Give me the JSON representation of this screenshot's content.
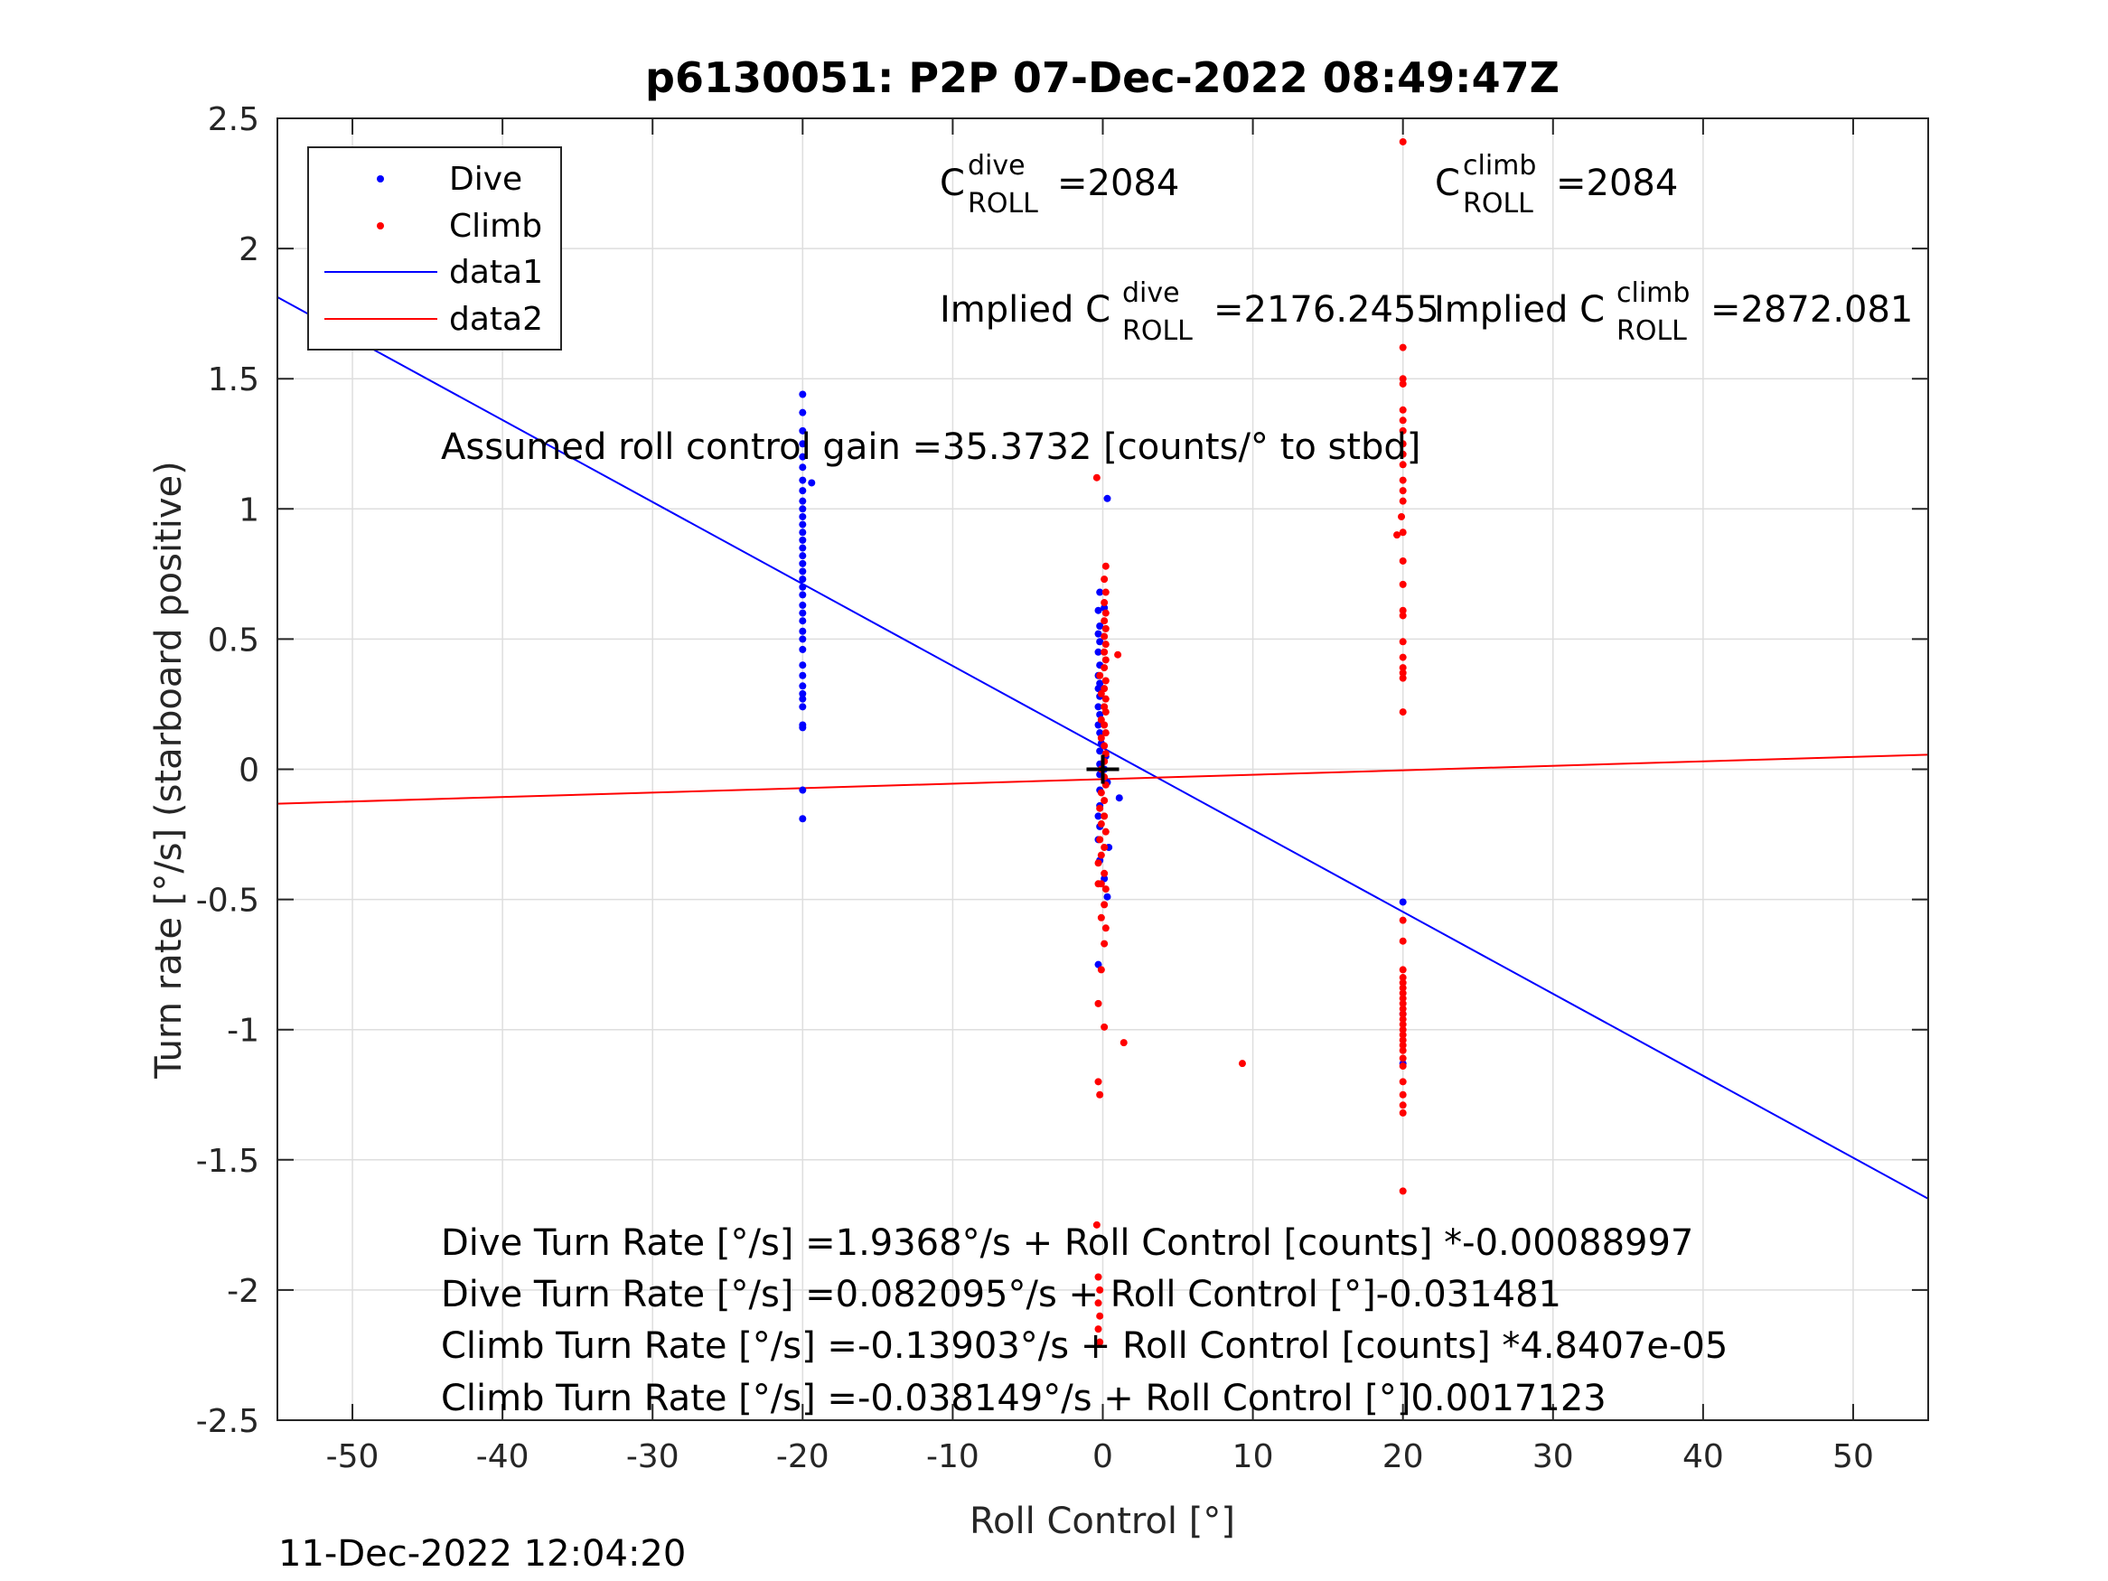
{
  "chart_data": {
    "type": "scatter",
    "title": "p6130051: P2P 07-Dec-2022 08:49:47Z",
    "xlabel": "Roll Control [°]",
    "ylabel": "Turn rate [°/s] (starboard positive)",
    "xlim": [
      -55,
      55
    ],
    "ylim": [
      -2.5,
      2.5
    ],
    "xticks": [
      "-50",
      "-40",
      "-30",
      "-20",
      "-10",
      "0",
      "10",
      "20",
      "30",
      "40",
      "50"
    ],
    "yticks": [
      "2.5",
      "2",
      "1.5",
      "1",
      "0.5",
      "0",
      "-0.5",
      "-1",
      "-1.5",
      "-2",
      "-2.5"
    ],
    "grid": true,
    "legend_position": "top-left",
    "colors": {
      "dive": "#0000ff",
      "climb": "#ff0000",
      "origin": "#000000"
    },
    "series": [
      {
        "name": "Dive",
        "kind": "scatter",
        "color": "#0000ff",
        "points": [
          [
            -20,
            1.44
          ],
          [
            -20,
            1.37
          ],
          [
            -20,
            1.3
          ],
          [
            -20,
            1.25
          ],
          [
            -20,
            1.2
          ],
          [
            -20,
            1.16
          ],
          [
            -20,
            1.11
          ],
          [
            -19.4,
            1.1
          ],
          [
            -20,
            1.07
          ],
          [
            -20,
            1.03
          ],
          [
            -20,
            1.0
          ],
          [
            -20,
            0.97
          ],
          [
            -20,
            0.94
          ],
          [
            -20,
            0.91
          ],
          [
            -20,
            0.88
          ],
          [
            -20,
            0.85
          ],
          [
            -20,
            0.82
          ],
          [
            -20,
            0.79
          ],
          [
            -20,
            0.76
          ],
          [
            -20,
            0.73
          ],
          [
            -20,
            0.7
          ],
          [
            -20,
            0.67
          ],
          [
            -20,
            0.63
          ],
          [
            -20,
            0.6
          ],
          [
            -20,
            0.57
          ],
          [
            -20,
            0.53
          ],
          [
            -20,
            0.5
          ],
          [
            -20,
            0.46
          ],
          [
            -20,
            0.4
          ],
          [
            -20,
            0.36
          ],
          [
            -20,
            0.32
          ],
          [
            -20,
            0.29
          ],
          [
            -20,
            0.27
          ],
          [
            -20,
            0.24
          ],
          [
            -20,
            0.17
          ],
          [
            -20,
            0.16
          ],
          [
            -20,
            -0.08
          ],
          [
            -20,
            -0.19
          ],
          [
            0.3,
            1.04
          ],
          [
            -0.2,
            0.68
          ],
          [
            -0.3,
            0.61
          ],
          [
            0.1,
            0.62
          ],
          [
            -0.2,
            0.55
          ],
          [
            -0.3,
            0.52
          ],
          [
            -0.2,
            0.49
          ],
          [
            -0.3,
            0.45
          ],
          [
            -0.2,
            0.4
          ],
          [
            -0.3,
            0.36
          ],
          [
            -0.2,
            0.33
          ],
          [
            -0.3,
            0.31
          ],
          [
            -0.2,
            0.28
          ],
          [
            -0.3,
            0.24
          ],
          [
            -0.2,
            0.21
          ],
          [
            -0.3,
            0.17
          ],
          [
            -0.2,
            0.14
          ],
          [
            -0.1,
            0.1
          ],
          [
            -0.2,
            0.07
          ],
          [
            0.2,
            0.05
          ],
          [
            -0.2,
            0.02
          ],
          [
            0.1,
            0.0
          ],
          [
            -0.2,
            -0.02
          ],
          [
            0.3,
            -0.05
          ],
          [
            -0.2,
            -0.08
          ],
          [
            1.1,
            -0.11
          ],
          [
            -0.2,
            -0.14
          ],
          [
            -0.3,
            -0.18
          ],
          [
            -0.2,
            -0.22
          ],
          [
            -0.3,
            -0.27
          ],
          [
            0.4,
            -0.3
          ],
          [
            -0.2,
            -0.35
          ],
          [
            0.1,
            -0.42
          ],
          [
            0.3,
            -0.49
          ],
          [
            -0.3,
            -0.75
          ],
          [
            20,
            -0.51
          ],
          [
            20,
            -0.94
          ],
          [
            20,
            -1.13
          ]
        ]
      },
      {
        "name": "Climb",
        "kind": "scatter",
        "color": "#ff0000",
        "points": [
          [
            -0.4,
            1.12
          ],
          [
            0.2,
            0.78
          ],
          [
            0.1,
            0.73
          ],
          [
            0.2,
            0.68
          ],
          [
            0.1,
            0.64
          ],
          [
            0.2,
            0.6
          ],
          [
            0.1,
            0.57
          ],
          [
            0.2,
            0.54
          ],
          [
            0.1,
            0.51
          ],
          [
            0.2,
            0.48
          ],
          [
            0.1,
            0.45
          ],
          [
            1.0,
            0.44
          ],
          [
            0.2,
            0.42
          ],
          [
            0.1,
            0.39
          ],
          [
            -0.2,
            0.36
          ],
          [
            0.2,
            0.34
          ],
          [
            0.1,
            0.31
          ],
          [
            -0.1,
            0.29
          ],
          [
            0.2,
            0.27
          ],
          [
            0.1,
            0.24
          ],
          [
            0.2,
            0.22
          ],
          [
            -0.1,
            0.19
          ],
          [
            0.1,
            0.17
          ],
          [
            0.2,
            0.14
          ],
          [
            -0.1,
            0.12
          ],
          [
            0.1,
            0.09
          ],
          [
            0.2,
            0.06
          ],
          [
            0.1,
            0.03
          ],
          [
            -0.1,
            0.0
          ],
          [
            0.1,
            -0.03
          ],
          [
            0.2,
            -0.06
          ],
          [
            -0.1,
            -0.09
          ],
          [
            0.1,
            -0.12
          ],
          [
            -0.2,
            -0.15
          ],
          [
            0.1,
            -0.18
          ],
          [
            -0.1,
            -0.21
          ],
          [
            0.2,
            -0.24
          ],
          [
            -0.2,
            -0.27
          ],
          [
            0.1,
            -0.3
          ],
          [
            -0.1,
            -0.33
          ],
          [
            -0.3,
            -0.36
          ],
          [
            0.1,
            -0.4
          ],
          [
            -0.1,
            -0.44
          ],
          [
            -0.3,
            -0.44
          ],
          [
            0.2,
            -0.46
          ],
          [
            0.1,
            -0.52
          ],
          [
            -0.1,
            -0.57
          ],
          [
            0.2,
            -0.61
          ],
          [
            0.1,
            -0.67
          ],
          [
            -0.1,
            -0.77
          ],
          [
            -0.3,
            -0.9
          ],
          [
            0.1,
            -0.99
          ],
          [
            1.4,
            -1.05
          ],
          [
            -0.3,
            -1.2
          ],
          [
            -0.2,
            -1.25
          ],
          [
            -0.4,
            -1.75
          ],
          [
            -0.3,
            -1.95
          ],
          [
            -0.2,
            -2.0
          ],
          [
            -0.3,
            -2.05
          ],
          [
            -0.2,
            -2.1
          ],
          [
            -0.3,
            -2.15
          ],
          [
            -0.2,
            -2.2
          ],
          [
            9.3,
            -1.13
          ],
          [
            20,
            2.41
          ],
          [
            20,
            1.62
          ],
          [
            20,
            1.5
          ],
          [
            20,
            1.48
          ],
          [
            20,
            1.38
          ],
          [
            20,
            1.34
          ],
          [
            20,
            1.3
          ],
          [
            20,
            1.25
          ],
          [
            20,
            1.21
          ],
          [
            20,
            1.17
          ],
          [
            20,
            1.11
          ],
          [
            20,
            1.07
          ],
          [
            20,
            1.03
          ],
          [
            19.9,
            0.97
          ],
          [
            19.6,
            0.9
          ],
          [
            20,
            0.91
          ],
          [
            20,
            0.8
          ],
          [
            20,
            0.71
          ],
          [
            20,
            0.61
          ],
          [
            20,
            0.59
          ],
          [
            20,
            0.49
          ],
          [
            20,
            0.43
          ],
          [
            20,
            0.39
          ],
          [
            20,
            0.37
          ],
          [
            20,
            0.35
          ],
          [
            20,
            0.22
          ],
          [
            20,
            -0.58
          ],
          [
            20,
            -0.66
          ],
          [
            20,
            -0.77
          ],
          [
            20,
            -0.8
          ],
          [
            20,
            -0.82
          ],
          [
            20,
            -0.84
          ],
          [
            20,
            -0.86
          ],
          [
            20,
            -0.88
          ],
          [
            20,
            -0.9
          ],
          [
            20,
            -0.92
          ],
          [
            20,
            -0.94
          ],
          [
            20,
            -0.96
          ],
          [
            20,
            -0.98
          ],
          [
            20,
            -1.0
          ],
          [
            20,
            -1.02
          ],
          [
            20,
            -1.04
          ],
          [
            20,
            -1.06
          ],
          [
            20,
            -1.08
          ],
          [
            20,
            -1.11
          ],
          [
            20,
            -1.14
          ],
          [
            20,
            -1.2
          ],
          [
            20,
            -1.25
          ],
          [
            20,
            -1.29
          ],
          [
            20,
            -1.32
          ],
          [
            20,
            -1.62
          ]
        ]
      },
      {
        "name": "data1",
        "kind": "line",
        "color": "#0000ff",
        "intercept": 0.082095,
        "slope": -0.031481
      },
      {
        "name": "data2",
        "kind": "line",
        "color": "#ff0000",
        "intercept": -0.038149,
        "slope": 0.0017123
      }
    ],
    "origin_marker": [
      0,
      0
    ],
    "annotations": {
      "c_dive_main": "C",
      "c_dive_sup": "dive",
      "c_dive_sub": "ROLL",
      "c_dive_value": "=2084",
      "c_climb_main": "C",
      "c_climb_sup": "climb",
      "c_climb_sub": "ROLL",
      "c_climb_value": "=2084",
      "implied_dive_main": "Implied C",
      "implied_dive_sup": "dive",
      "implied_dive_sub": "ROLL",
      "implied_dive_value": "=2176.2455",
      "implied_climb_main": "Implied C",
      "implied_climb_sup": "climb",
      "implied_climb_sub": "ROLL",
      "implied_climb_value": "=2872.081",
      "gain": "Assumed roll control gain =35.3732 [counts/° to stbd]",
      "eq1": "Dive Turn Rate [°/s] =1.9368°/s + Roll Control [counts] *-0.00088997",
      "eq2": "Dive Turn Rate [°/s] =0.082095°/s + Roll Control [°]-0.031481",
      "eq3": "Climb Turn Rate [°/s] =-0.13903°/s + Roll Control [counts] *4.8407e-05",
      "eq4": "Climb Turn Rate [°/s] =-0.038149°/s + Roll Control [°]0.0017123"
    },
    "timestamp": "11-Dec-2022 12:04:20"
  }
}
